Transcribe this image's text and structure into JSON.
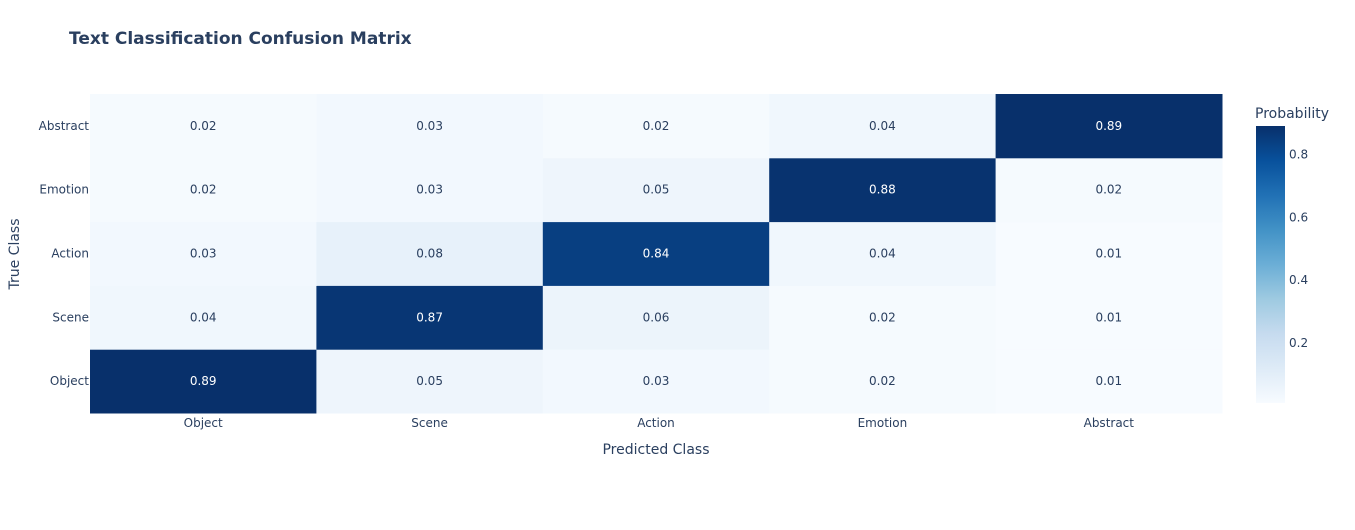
{
  "chart_data": {
    "type": "heatmap",
    "title": "Text Classification Confusion Matrix",
    "xlabel": "Predicted Class",
    "ylabel": "True Class",
    "x_categories": [
      "Object",
      "Scene",
      "Action",
      "Emotion",
      "Abstract"
    ],
    "y_categories": [
      "Object",
      "Scene",
      "Action",
      "Emotion",
      "Abstract"
    ],
    "z": [
      [
        0.89,
        0.05,
        0.03,
        0.02,
        0.01
      ],
      [
        0.04,
        0.87,
        0.06,
        0.02,
        0.01
      ],
      [
        0.03,
        0.08,
        0.84,
        0.04,
        0.01
      ],
      [
        0.02,
        0.03,
        0.05,
        0.88,
        0.02
      ],
      [
        0.02,
        0.03,
        0.02,
        0.04,
        0.89
      ]
    ],
    "colorscale": "Blues",
    "colorscale_low": "#f7fbff",
    "colorscale_high": "#08306b",
    "colorbar_title": "Probability",
    "colorbar_ticks": [
      "0.2",
      "0.4",
      "0.6",
      "0.8"
    ],
    "colorbar_tick_values": [
      0.2,
      0.4,
      0.6,
      0.8
    ],
    "zrange": [
      0.01,
      0.89
    ]
  }
}
